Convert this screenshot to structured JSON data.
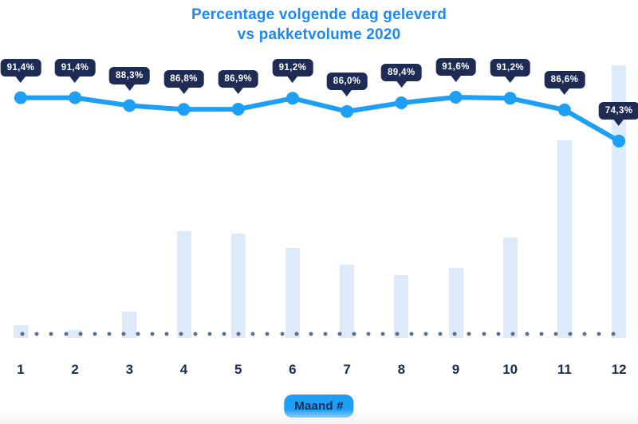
{
  "title": {
    "line1": "Percentage volgende dag geleverd",
    "line2": "vs pakketvolume 2020"
  },
  "xaxis": {
    "label": "Maand #",
    "ticks": [
      "1",
      "2",
      "3",
      "4",
      "5",
      "6",
      "7",
      "8",
      "9",
      "10",
      "11",
      "12"
    ]
  },
  "chart_data": {
    "type": "line",
    "title": "Percentage volgende dag geleverd vs pakketvolume 2020",
    "xlabel": "Maand #",
    "ylabel": "",
    "categories": [
      1,
      2,
      3,
      4,
      5,
      6,
      7,
      8,
      9,
      10,
      11,
      12
    ],
    "series": [
      {
        "name": "Percentage volgende dag geleverd",
        "type": "line",
        "unit": "%",
        "values": [
          91.4,
          91.4,
          88.3,
          86.8,
          86.9,
          91.2,
          86.0,
          89.4,
          91.6,
          91.2,
          86.6,
          74.3
        ],
        "labels": [
          "91,4%",
          "91,4%",
          "88,3%",
          "86,8%",
          "86,9%",
          "91,2%",
          "86,0%",
          "89,4%",
          "91,6%",
          "91,2%",
          "86,6%",
          "74,3%"
        ]
      },
      {
        "name": "Pakketvolume 2020",
        "type": "bar",
        "unit": "relative index (max = 100)",
        "values": [
          4.7,
          2.9,
          9.6,
          39.2,
          38.3,
          33.0,
          26.9,
          23.1,
          25.7,
          36.8,
          72.5,
          100
        ]
      }
    ],
    "ylim_line_percent": [
      70,
      95
    ],
    "legend": false,
    "grid": false,
    "annotations": "dotted baseline runs along the x-axis under the bars"
  },
  "colors": {
    "title_blue": "#1E88F2",
    "line_blue": "#1C9FF5",
    "tooltip_navy": "#1D2B55",
    "bar_fill": "#DCEAF9",
    "baseline_dot": "#5D7093",
    "axis_text": "#1D2B55",
    "badge_blue": "#1C9FF5"
  }
}
